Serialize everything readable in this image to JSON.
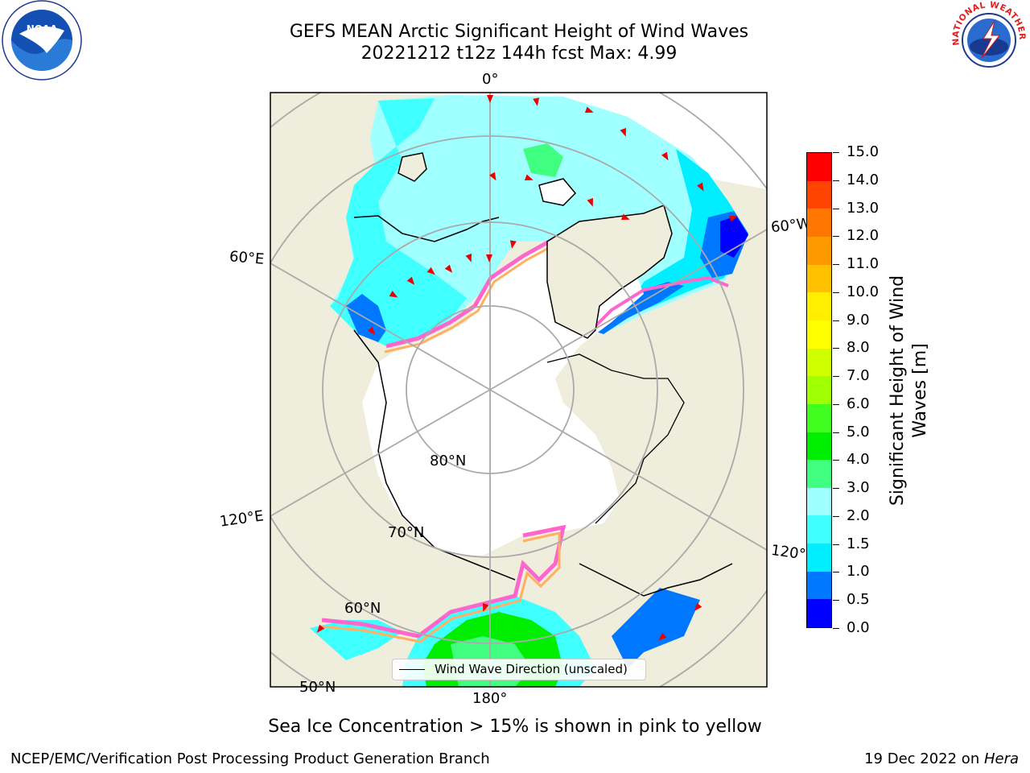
{
  "header": {
    "title_line1": "GEFS MEAN Arctic Significant Height of Wind Waves",
    "title_line2": "20221212 t12z 144h fcst   Max: 4.99"
  },
  "map": {
    "projection": "north-polar-stereographic",
    "longitude_labels": [
      "0°",
      "60°E",
      "120°E",
      "180°",
      "120°W",
      "60°W"
    ],
    "latitude_labels": [
      "80°N",
      "70°N",
      "60°N",
      "50°N"
    ],
    "legend_label": "Wind Wave Direction (unscaled)",
    "colors": {
      "land": "#efeddb",
      "coast": "#000000",
      "gridlines": "#aaaaaa",
      "sea_ice_edge": [
        "#ff66cc",
        "#ffb060",
        "#ffe060"
      ],
      "direction_arrows": "#ee0000"
    }
  },
  "colorbar": {
    "title": "Significant Height of Wind Waves [m]",
    "tick_labels": [
      "0.0",
      "0.5",
      "1.0",
      "1.5",
      "2.0",
      "3.0",
      "4.0",
      "5.0",
      "6.0",
      "7.0",
      "8.0",
      "9.0",
      "10.0",
      "11.0",
      "12.0",
      "13.0",
      "14.0",
      "15.0"
    ],
    "colors": [
      "#0000ff",
      "#0077ff",
      "#00eeff",
      "#40ffff",
      "#a0ffff",
      "#40ff80",
      "#00ee00",
      "#40ff20",
      "#a0ff00",
      "#d0ff00",
      "#ffff00",
      "#ffee00",
      "#ffc000",
      "#ff9900",
      "#ff7700",
      "#ff4400",
      "#ff0000"
    ]
  },
  "footer": {
    "note": "Sea Ice Concentration > 15% is shown in pink to yellow",
    "left": "NCEP/EMC/Verification Post Processing Product Generation Branch",
    "right_prefix": "19 Dec 2022 on ",
    "right_host": "Hera"
  },
  "logos": {
    "noaa_text": "NOAA",
    "nws_text": "NATIONAL WEATHER SERVICE"
  }
}
